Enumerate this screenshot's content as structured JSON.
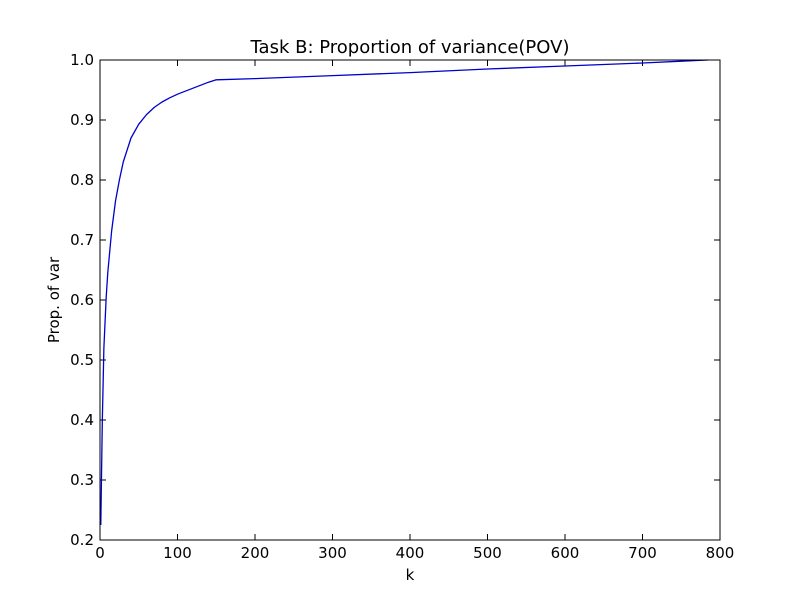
{
  "chart_data": {
    "type": "line",
    "title": "Task B: Proportion of variance(POV)",
    "xlabel": "k",
    "ylabel": "Prop. of var",
    "xlim": [
      0,
      800
    ],
    "ylim": [
      0.2,
      1.0
    ],
    "grid": false,
    "x_ticks": [
      "0",
      "100",
      "200",
      "300",
      "400",
      "500",
      "600",
      "700",
      "800"
    ],
    "y_ticks": [
      "0.2",
      "0.3",
      "0.4",
      "0.5",
      "0.6",
      "0.7",
      "0.8",
      "0.9",
      "1.0"
    ],
    "line_color": "#0000cc",
    "series": [
      {
        "x": [
          1,
          3,
          5,
          8,
          10,
          15,
          20,
          25,
          30,
          40,
          50,
          60,
          70,
          80,
          90,
          100,
          110,
          120,
          130,
          140,
          150,
          200,
          300,
          400,
          500,
          600,
          700,
          750,
          784
        ],
        "values": [
          0.225,
          0.4,
          0.52,
          0.605,
          0.645,
          0.715,
          0.765,
          0.8,
          0.83,
          0.87,
          0.893,
          0.909,
          0.921,
          0.93,
          0.937,
          0.943,
          0.948,
          0.953,
          0.958,
          0.963,
          0.967,
          0.969,
          0.974,
          0.979,
          0.985,
          0.99,
          0.995,
          0.998,
          1.0
        ]
      }
    ]
  }
}
